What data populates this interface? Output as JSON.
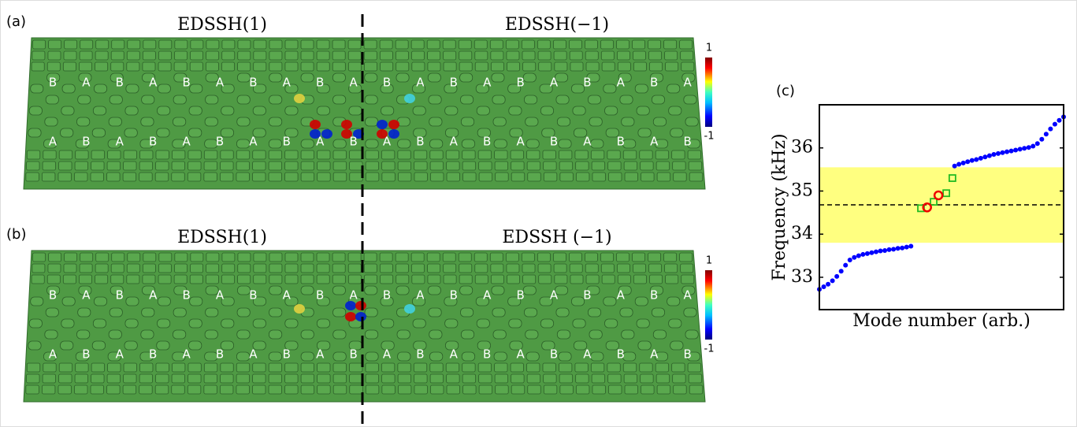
{
  "panels": [
    {
      "label": "(a)",
      "titles": [
        "EDSSH(1)",
        "EDSSH(−1)"
      ],
      "colorbar_ticks": [
        "1",
        "-1"
      ],
      "rows": [
        [
          "B",
          "A",
          "B",
          "A",
          "B",
          "A",
          "B",
          "A",
          "B",
          "A",
          "B",
          "A",
          "B",
          "A",
          "B",
          "A",
          "B",
          "A",
          "B",
          "A"
        ],
        [
          "A",
          "B",
          "A",
          "B",
          "A",
          "B",
          "A",
          "B",
          "A",
          "B",
          "A",
          "B",
          "A",
          "B",
          "A",
          "B",
          "A",
          "B",
          "A",
          "B"
        ]
      ]
    },
    {
      "label": "(b)",
      "titles": [
        "EDSSH(1)",
        "EDSSH (−1)"
      ],
      "colorbar_ticks": [
        "1",
        "-1"
      ],
      "rows": [
        [
          "B",
          "A",
          "B",
          "A",
          "B",
          "A",
          "B",
          "A",
          "B",
          "A",
          "B",
          "A",
          "B",
          "A",
          "B",
          "A",
          "B",
          "A",
          "B",
          "A"
        ],
        [
          "A",
          "B",
          "A",
          "B",
          "A",
          "B",
          "A",
          "B",
          "A",
          "B",
          "A",
          "B",
          "A",
          "B",
          "A",
          "B",
          "A",
          "B",
          "A",
          "B"
        ]
      ]
    }
  ],
  "chart_data": {
    "type": "scatter",
    "label": "(c)",
    "xlabel": "Mode number (arb.)",
    "ylabel": "Frequency (kHz)",
    "xlim": [
      0,
      56
    ],
    "ylim": [
      32.25,
      37
    ],
    "yticks": [
      33,
      34,
      35,
      36
    ],
    "band": [
      33.8,
      35.55
    ],
    "band_color": "#ffff80",
    "hline": 34.68,
    "series": [
      {
        "color": "#0000ff",
        "marker": "dot",
        "x": [
          0,
          1,
          2,
          3,
          4,
          5,
          6,
          7,
          8,
          9,
          10,
          11,
          12,
          13,
          14,
          15,
          16,
          17,
          18,
          19,
          20,
          21
        ],
        "values": [
          32.72,
          32.78,
          32.84,
          32.92,
          33.02,
          33.14,
          33.28,
          33.4,
          33.46,
          33.5,
          33.53,
          33.55,
          33.57,
          33.59,
          33.61,
          33.62,
          33.64,
          33.65,
          33.67,
          33.68,
          33.7,
          33.72
        ]
      },
      {
        "color": "#0000ff",
        "marker": "dot",
        "x": [
          31,
          32,
          33,
          34,
          35,
          36,
          37,
          38,
          39,
          40,
          41,
          42,
          43,
          44,
          45,
          46,
          47,
          48,
          49,
          50,
          51,
          52,
          53,
          54,
          55,
          56
        ],
        "values": [
          35.58,
          35.62,
          35.65,
          35.68,
          35.71,
          35.73,
          35.76,
          35.79,
          35.82,
          35.85,
          35.87,
          35.89,
          35.91,
          35.93,
          35.95,
          35.97,
          35.99,
          36.01,
          36.04,
          36.1,
          36.2,
          36.32,
          36.44,
          36.55,
          36.64,
          36.72
        ]
      },
      {
        "color": "#22bb22",
        "marker": "square",
        "x": [
          23.3,
          26.2,
          29.1,
          30.5
        ],
        "values": [
          34.6,
          34.75,
          34.95,
          35.3
        ]
      },
      {
        "color": "#ee0000",
        "marker": "circle",
        "x": [
          24.7,
          27.3
        ],
        "values": [
          34.62,
          34.9
        ]
      }
    ]
  }
}
